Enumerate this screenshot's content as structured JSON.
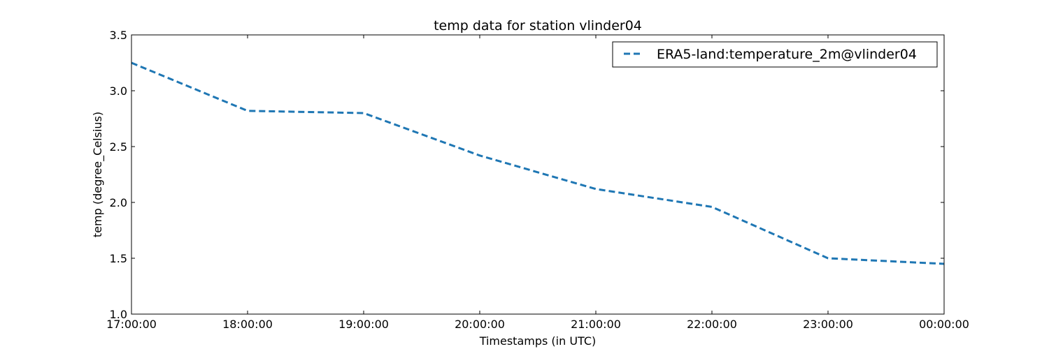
{
  "chart_data": {
    "type": "line",
    "title": "temp data for station vlinder04",
    "xlabel": "Timestamps (in UTC)",
    "ylabel": "temp (degree_Celsius)",
    "x": [
      "17:00:00",
      "18:00:00",
      "19:00:00",
      "20:00:00",
      "21:00:00",
      "22:00:00",
      "23:00:00",
      "00:00:00"
    ],
    "ylim": [
      1.0,
      3.5
    ],
    "yticks": [
      "1.0",
      "1.5",
      "2.0",
      "2.5",
      "3.0",
      "3.5"
    ],
    "series": [
      {
        "name": "ERA5-land:temperature_2m@vlinder04",
        "values": [
          3.25,
          2.82,
          2.8,
          2.42,
          2.12,
          1.96,
          1.5,
          1.45
        ],
        "color": "#1f77b4",
        "linestyle": "dashed"
      }
    ],
    "legend": "top-right",
    "grid": false
  }
}
